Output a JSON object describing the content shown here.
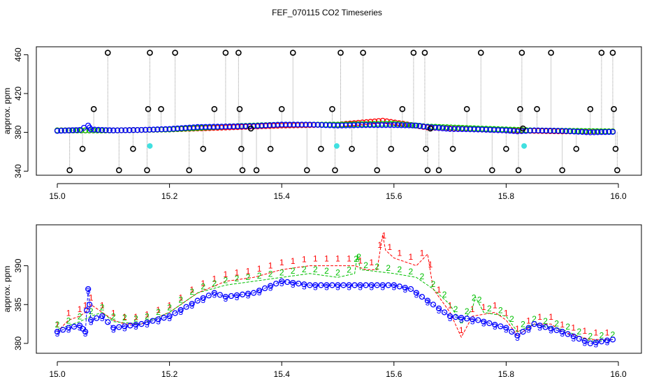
{
  "figure": {
    "title": "FEF_070115  CO2 Timeseries"
  },
  "colors": {
    "series1": "#ff0000",
    "series2": "#00c000",
    "series3": "#0000ff",
    "outlier": "#000000",
    "flagged": "#40e0e0",
    "spike_line": "#999999"
  },
  "chart_data": [
    {
      "type": "scatter",
      "title": "",
      "xlabel": "",
      "ylabel": "approx. ppm",
      "xlim": [
        15.0,
        16.0
      ],
      "ylim": [
        338,
        466
      ],
      "xticks": [
        "15.0",
        "15.2",
        "15.4",
        "15.6",
        "15.8",
        "16.0"
      ],
      "yticks": [
        "340",
        "380",
        "420",
        "460"
      ],
      "grid": false,
      "series": [
        {
          "marker": "circle",
          "color": "red",
          "x": [
            15.0,
            15.1,
            15.2,
            15.3,
            15.4,
            15.5,
            15.58,
            15.66,
            15.7,
            15.8,
            15.9,
            15.99
          ],
          "y": [
            382,
            382,
            383,
            385,
            387,
            388,
            392,
            385,
            384,
            382,
            381,
            381
          ]
        },
        {
          "marker": "circle",
          "color": "green",
          "x": [
            15.0,
            15.1,
            15.2,
            15.3,
            15.4,
            15.5,
            15.6,
            15.66,
            15.75,
            15.85,
            15.99
          ],
          "y": [
            382,
            382,
            383,
            386,
            388,
            388,
            389,
            386,
            384,
            382,
            381
          ]
        },
        {
          "marker": "circle",
          "color": "blue",
          "x": [
            15.0,
            15.02,
            15.04,
            15.055,
            15.06,
            15.1,
            15.15,
            15.2,
            15.25,
            15.3,
            15.35,
            15.4,
            15.45,
            15.5,
            15.55,
            15.6,
            15.64,
            15.66,
            15.7,
            15.75,
            15.8,
            15.82,
            15.85,
            15.9,
            15.95,
            15.99
          ],
          "y": [
            381.5,
            382,
            382.5,
            387,
            383,
            382,
            382.5,
            383.5,
            385.5,
            386,
            386.5,
            388,
            388,
            387,
            387.5,
            387.5,
            387,
            385.5,
            383.5,
            383,
            382,
            381,
            382,
            381.5,
            380,
            380.5
          ]
        },
        {
          "marker": "circle",
          "color": "black",
          "x": [
            15.022,
            15.045,
            15.065,
            15.09,
            15.11,
            15.135,
            15.16,
            15.162,
            15.165,
            15.185,
            15.21,
            15.235,
            15.26,
            15.28,
            15.3,
            15.323,
            15.325,
            15.328,
            15.33,
            15.345,
            15.355,
            15.38,
            15.4,
            15.42,
            15.445,
            15.47,
            15.49,
            15.495,
            15.505,
            15.525,
            15.545,
            15.57,
            15.595,
            15.615,
            15.635,
            15.655,
            15.657,
            15.66,
            15.665,
            15.68,
            15.705,
            15.73,
            15.755,
            15.775,
            15.8,
            15.822,
            15.825,
            15.828,
            15.83,
            15.855,
            15.88,
            15.9,
            15.925,
            15.95,
            15.97,
            15.99,
            15.992,
            15.995,
            15.998
          ],
          "y": [
            341,
            363,
            404,
            462,
            341,
            363,
            341,
            404,
            462,
            404,
            462,
            341,
            363,
            404,
            462,
            462,
            404,
            363,
            341,
            384,
            341,
            363,
            404,
            462,
            341,
            363,
            404,
            341,
            462,
            363,
            462,
            341,
            363,
            404,
            462,
            462,
            363,
            341,
            384,
            341,
            363,
            404,
            462,
            341,
            363,
            341,
            404,
            462,
            384,
            404,
            462,
            341,
            363,
            404,
            462,
            462,
            404,
            363,
            341
          ]
        },
        {
          "marker": "circle",
          "color": "cyan",
          "x": [
            15.165,
            15.498,
            15.832
          ],
          "y": [
            366,
            366,
            366
          ]
        }
      ]
    },
    {
      "type": "line",
      "title": "",
      "xlabel": "",
      "ylabel": "approx. ppm",
      "xlim": [
        15.0,
        16.0
      ],
      "ylim": [
        379,
        395
      ],
      "xticks": [
        "15.0",
        "15.2",
        "15.4",
        "15.6",
        "15.8",
        "16.0"
      ],
      "yticks": [
        "380",
        "385",
        "390"
      ],
      "grid": false,
      "series": [
        {
          "marker_label": "1",
          "color": "red",
          "x": [
            15.0,
            15.02,
            15.04,
            15.05,
            15.06,
            15.08,
            15.1,
            15.12,
            15.15,
            15.2,
            15.25,
            15.3,
            15.35,
            15.4,
            15.45,
            15.5,
            15.53,
            15.55,
            15.57,
            15.58,
            15.585,
            15.6,
            15.62,
            15.64,
            15.66,
            15.67,
            15.7,
            15.72,
            15.74,
            15.78,
            15.8,
            15.82,
            15.85,
            15.88,
            15.9,
            15.95,
            15.99
          ],
          "y": [
            381.5,
            383,
            383.5,
            384,
            385,
            384,
            383,
            382.5,
            382.5,
            384,
            386.5,
            388,
            388.5,
            389.5,
            390,
            390,
            390,
            389.5,
            389.5,
            394,
            392,
            391,
            390.5,
            390,
            391.5,
            387,
            384,
            380.8,
            383.5,
            384,
            383,
            381,
            382.5,
            382.5,
            381.5,
            380.5,
            380.5
          ]
        },
        {
          "marker_label": "2",
          "color": "green",
          "x": [
            15.0,
            15.02,
            15.04,
            15.06,
            15.08,
            15.1,
            15.15,
            15.2,
            15.25,
            15.3,
            15.35,
            15.4,
            15.45,
            15.5,
            15.53,
            15.535,
            15.54,
            15.6,
            15.64,
            15.67,
            15.7,
            15.72,
            15.74,
            15.745,
            15.76,
            15.8,
            15.82,
            15.85,
            15.9,
            15.95,
            15.99
          ],
          "y": [
            381.8,
            382.3,
            382.8,
            383.5,
            384,
            382.8,
            382.5,
            384,
            386.5,
            387.5,
            388,
            388.5,
            389,
            388.5,
            389,
            391.5,
            389.5,
            389,
            388.5,
            387,
            385,
            382.5,
            384.5,
            386,
            384,
            383.5,
            381.5,
            382.5,
            381.8,
            380.3,
            380.5
          ]
        },
        {
          "marker_label": "3",
          "color": "blue",
          "x": [
            15.0,
            15.02,
            15.04,
            15.05,
            15.055,
            15.06,
            15.08,
            15.1,
            15.15,
            15.2,
            15.25,
            15.28,
            15.3,
            15.35,
            15.4,
            15.45,
            15.5,
            15.53,
            15.55,
            15.6,
            15.63,
            15.66,
            15.7,
            15.75,
            15.8,
            15.82,
            15.85,
            15.9,
            15.95,
            15.99
          ],
          "y": [
            381.5,
            382,
            382.3,
            381.5,
            387,
            383,
            383.5,
            382,
            382.5,
            383.5,
            385.5,
            386.5,
            386,
            386.5,
            388,
            387.5,
            387.5,
            387.5,
            387.5,
            387.5,
            387,
            385.5,
            383.5,
            383,
            382,
            381,
            382.5,
            381.5,
            380,
            380.5
          ]
        }
      ]
    }
  ]
}
